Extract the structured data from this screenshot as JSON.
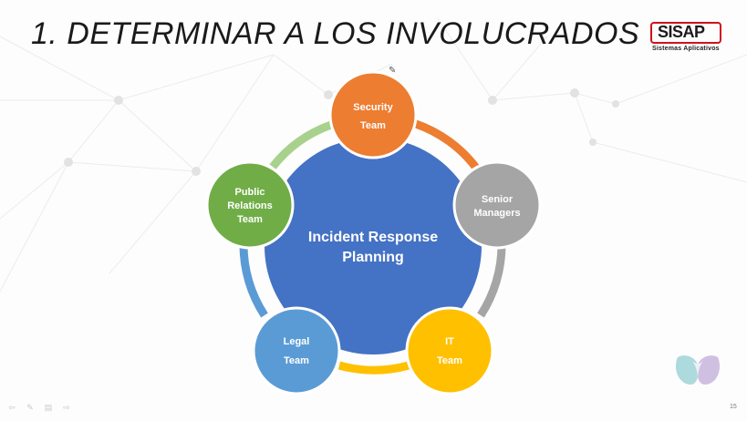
{
  "slide": {
    "title": "1. DETERMINAR A LOS INVOLUCRADOS",
    "page_number": "15"
  },
  "logo": {
    "name": "SISAP",
    "subtitle": "Sistemas Aplicativos",
    "color": "#d0121b"
  },
  "diagram": {
    "center_line1": "Incident Response",
    "center_line2": "Planning",
    "center_color": "#4472c4",
    "nodes": [
      {
        "line1": "Security",
        "line2": "Team",
        "color": "#ed7d31"
      },
      {
        "line1": "Senior",
        "line2": "Managers",
        "color": "#a5a5a5"
      },
      {
        "line1": "IT",
        "line2": "Team",
        "color": "#ffc000"
      },
      {
        "line1": "Legal",
        "line2": "Team",
        "color": "#5b9bd5"
      },
      {
        "line1": "Public",
        "line2": "Relations",
        "line3": "Team",
        "color": "#70ad47"
      }
    ]
  },
  "navigation": {
    "icons": [
      "back-arrow-icon",
      "pen-icon",
      "slides-icon",
      "forward-arrow-icon"
    ]
  }
}
